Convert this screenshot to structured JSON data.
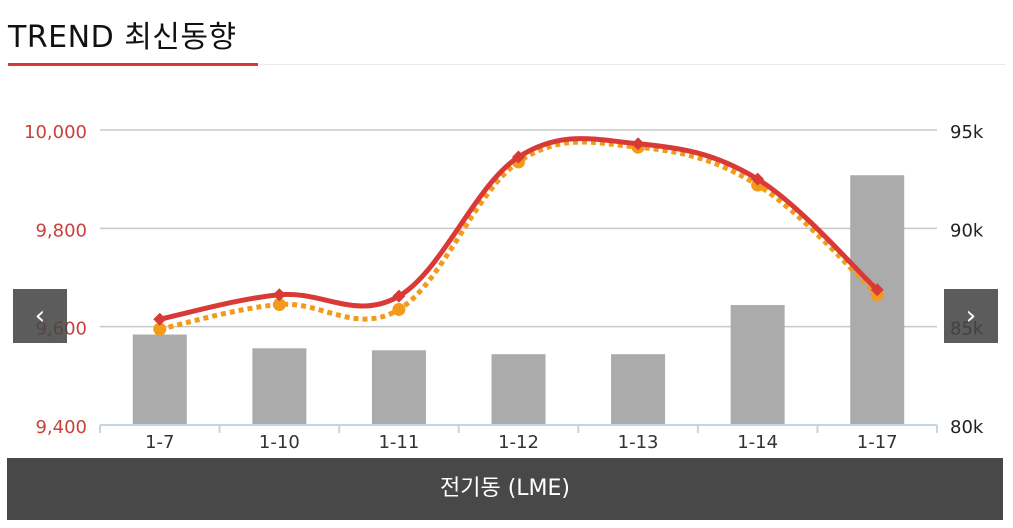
{
  "header": {
    "title": "TREND 최신동향"
  },
  "navigation": {
    "prev_label": "‹",
    "next_label": "›",
    "prev_icon": "chevron-left-icon",
    "next_icon": "chevron-right-icon"
  },
  "commodity_bar": {
    "label": "전기동 (LME)"
  },
  "colors": {
    "accent": "#d83a35",
    "line_primary": "#d93a36",
    "line_secondary": "#f39a1b",
    "bars": "#ababab",
    "grid": "#c8c8c8",
    "left_axis_text": "#c9403c",
    "right_axis_text": "#222222"
  },
  "chart_data": {
    "type": "bar+line",
    "categories": [
      "1-7",
      "1-10",
      "1-11",
      "1-12",
      "1-13",
      "1-14",
      "1-17"
    ],
    "y_left": {
      "range": [
        9400,
        10000
      ],
      "ticks": [
        "9,400",
        "9,600",
        "9,800",
        "10,000"
      ],
      "tick_values": [
        9400,
        9600,
        9800,
        10000
      ]
    },
    "y_right": {
      "range": [
        80,
        95
      ],
      "ticks": [
        "80k",
        "85k",
        "90k",
        "95k"
      ],
      "tick_values": [
        80,
        85,
        90,
        95
      ],
      "unit": "thousands"
    },
    "bars": {
      "axis": "right",
      "values": [
        84.6,
        83.9,
        83.8,
        83.6,
        83.6,
        86.1,
        92.7
      ]
    },
    "series": [
      {
        "style": "solid",
        "axis": "left",
        "marker": "diamond",
        "values": [
          9615,
          9665,
          9662,
          9945,
          9972,
          9900,
          9675
        ]
      },
      {
        "style": "dotted",
        "axis": "left",
        "marker": "circle",
        "values": [
          9595,
          9645,
          9635,
          9935,
          9965,
          9888,
          9665
        ]
      }
    ],
    "grid": true,
    "legend": "none"
  }
}
